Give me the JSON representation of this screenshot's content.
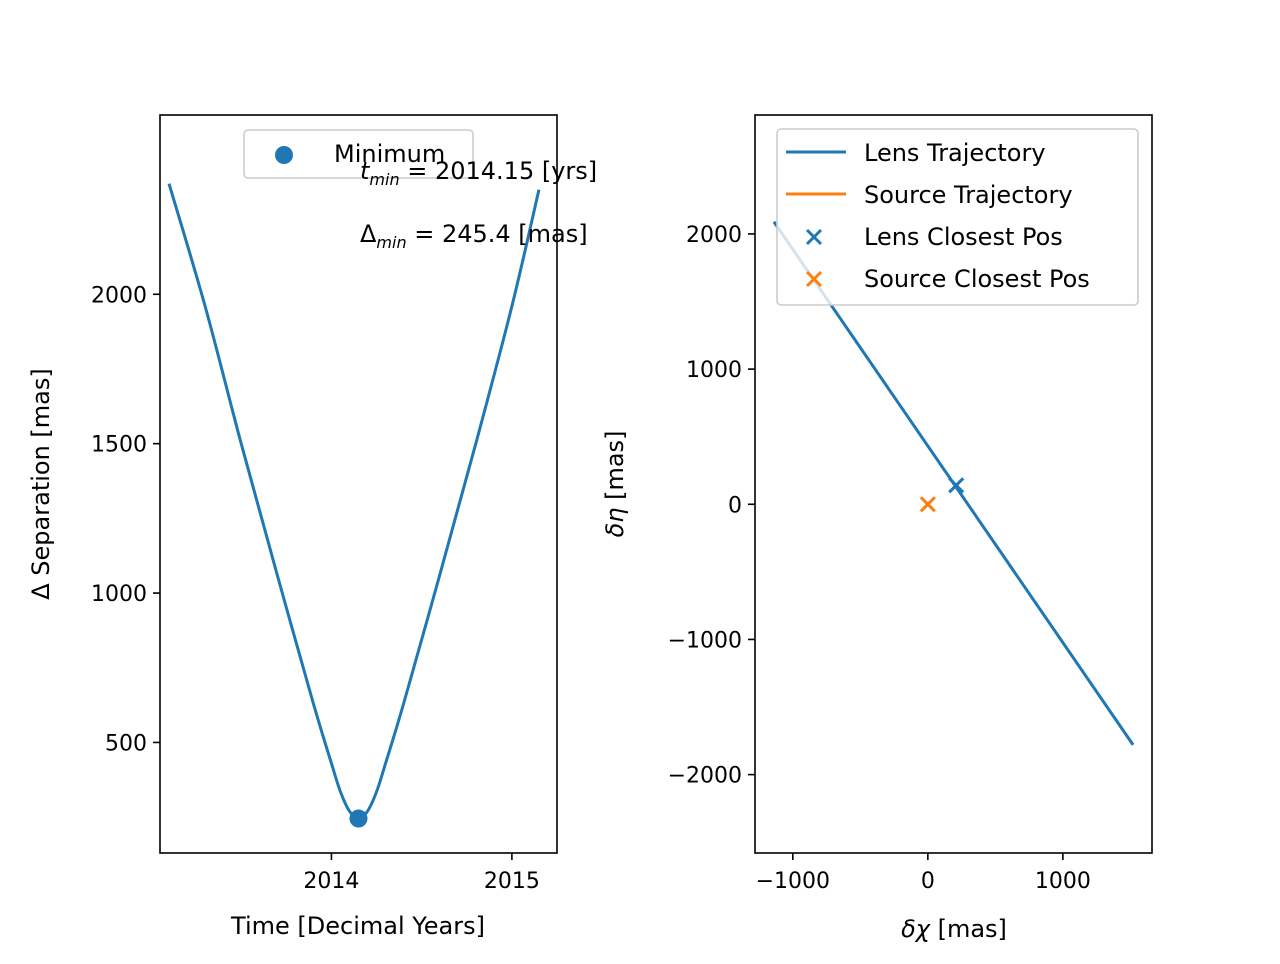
{
  "chart_data": [
    {
      "type": "line",
      "xlabel": "Time [Decimal Years]",
      "ylabel": "Δ Separation [mas]",
      "xlim": [
        2013.05,
        2015.25
      ],
      "ylim": [
        130,
        2600
      ],
      "xticks": [
        2014,
        2015
      ],
      "xtick_labels": [
        "2014",
        "2015"
      ],
      "yticks": [
        500,
        1000,
        1500,
        2000
      ],
      "ytick_labels": [
        "500",
        "1000",
        "1500",
        "2000"
      ],
      "series": [
        {
          "kind": "line",
          "color": "#1f77b4",
          "x": [
            2013.1,
            2013.3,
            2013.5,
            2013.7,
            2013.9,
            2014.0,
            2014.05,
            2014.1,
            2014.15,
            2014.2,
            2014.25,
            2014.3,
            2014.4,
            2014.6,
            2014.8,
            2015.0,
            2015.15
          ],
          "y": [
            2370,
            1960,
            1500,
            1060,
            630,
            430,
            335,
            270,
            245.4,
            270,
            335,
            430,
            630,
            1060,
            1500,
            1960,
            2350
          ]
        },
        {
          "kind": "point",
          "name": "Minimum",
          "color": "#1f77b4",
          "x": [
            2014.15
          ],
          "y": [
            245.4
          ]
        }
      ],
      "legend": {
        "entries": [
          "Minimum"
        ],
        "placement": "upper-center"
      },
      "annotations": [
        {
          "prefix": "t",
          "sub": "min",
          "text": " = 2014.15 [yrs]"
        },
        {
          "prefix": "Δ",
          "sub": "min",
          "text": " = 245.4 [mas]"
        }
      ]
    },
    {
      "type": "line",
      "xlabel_symbol": "δχ",
      "xlabel_unit": " [mas]",
      "ylabel_symbol": "δη",
      "ylabel_unit": " [mas]",
      "xlim": [
        -1280,
        1660
      ],
      "ylim": [
        -2580,
        2880
      ],
      "xticks": [
        -1000,
        0,
        1000
      ],
      "xtick_labels": [
        "−1000",
        "0",
        "1000"
      ],
      "yticks": [
        -2000,
        -1000,
        0,
        1000,
        2000
      ],
      "ytick_labels": [
        "−2000",
        "−1000",
        "0",
        "1000",
        "2000"
      ],
      "series": [
        {
          "kind": "line",
          "name": "Lens Trajectory",
          "color": "#1f77b4",
          "x": [
            -1140,
            1520
          ],
          "y": [
            2090,
            -1780
          ]
        },
        {
          "kind": "line",
          "name": "Source Trajectory",
          "color": "#ff7f0e",
          "x": [
            0,
            0
          ],
          "y": [
            0,
            0
          ]
        },
        {
          "kind": "marker",
          "name": "Lens Closest Pos",
          "color": "#1f77b4",
          "x": [
            210
          ],
          "y": [
            140
          ]
        },
        {
          "kind": "marker",
          "name": "Source Closest Pos",
          "color": "#ff7f0e",
          "x": [
            0
          ],
          "y": [
            0
          ]
        }
      ],
      "legend": {
        "entries": [
          "Lens Trajectory",
          "Source Trajectory",
          "Lens Closest Pos",
          "Source Closest Pos"
        ],
        "placement": "upper-right"
      }
    }
  ]
}
